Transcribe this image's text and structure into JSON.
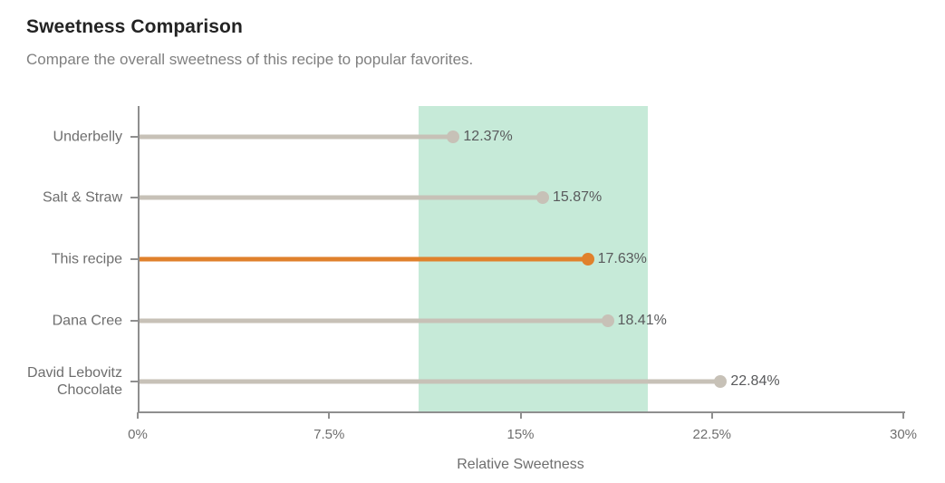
{
  "chart_data": {
    "type": "bar",
    "variant": "horizontal-lollipop",
    "title": "Sweetness Comparison",
    "subtitle": "Compare the overall sweetness of this recipe to popular favorites.",
    "categories": [
      "Underbelly",
      "Salt & Straw",
      "This recipe",
      "Dana Cree",
      "David Lebovitz Chocolate"
    ],
    "values": [
      12.37,
      15.87,
      17.63,
      18.41,
      22.84
    ],
    "value_labels": [
      "12.37%",
      "15.87%",
      "17.63%",
      "18.41%",
      "22.84%"
    ],
    "highlighted_category": "This recipe",
    "xlabel": "Relative Sweetness",
    "ylabel": "",
    "xlim": [
      0,
      30
    ],
    "x_ticks": [
      0,
      7.5,
      15,
      22.5,
      30
    ],
    "x_tick_labels": [
      "0%",
      "7.5%",
      "15%",
      "22.5%",
      "30%"
    ],
    "reference_band": {
      "from": 11,
      "to": 20
    },
    "grid": false,
    "legend": false,
    "colors": {
      "default_series": "#c7c1b7",
      "highlight_series": "#e0812c",
      "band_fill": "#c6ead8",
      "axis": "#8f8f8f",
      "category_text": "#6e6e6e",
      "value_text": "#595a5c",
      "title_text": "#232323",
      "subtitle_text": "#808080"
    }
  }
}
